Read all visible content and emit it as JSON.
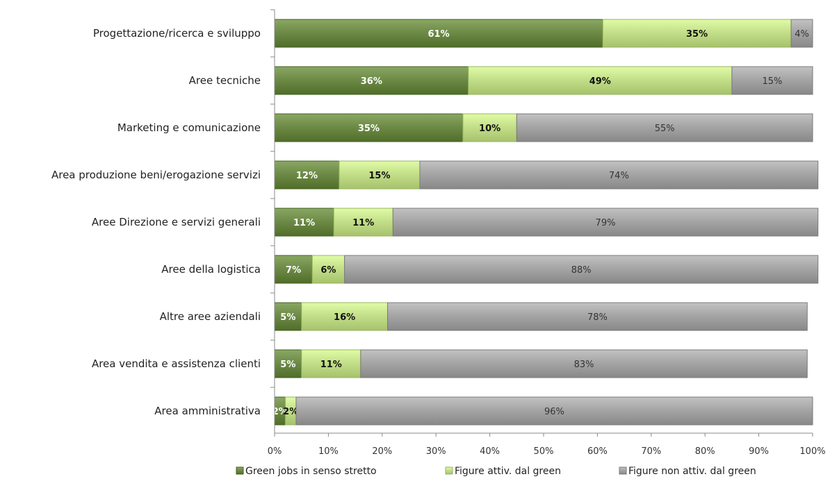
{
  "chart_data": {
    "type": "bar",
    "orientation": "horizontal",
    "stacked": "percent",
    "categories": [
      "Progettazione/ricerca e sviluppo",
      "Aree tecniche",
      "Marketing e comunicazione",
      "Area produzione beni/erogazione servizi",
      "Aree Direzione e servizi generali",
      "Aree della logistica",
      "Altre aree aziendali",
      "Area vendita e assistenza clienti",
      "Area amministrativa"
    ],
    "series": [
      {
        "name": "Green jobs in senso stretto",
        "color": "#6e8c48",
        "label_color": "#ffffff",
        "values": [
          61,
          36,
          35,
          12,
          11,
          7,
          5,
          5,
          2
        ],
        "labels": [
          "61%",
          "36%",
          "35%",
          "12%",
          "11%",
          "7%",
          "5%",
          "5%",
          "2%"
        ]
      },
      {
        "name": "Figure attiv. dal green",
        "color": "#c4e08a",
        "label_color": "#111111",
        "values": [
          35,
          49,
          10,
          15,
          11,
          6,
          16,
          11,
          2
        ],
        "labels": [
          "35%",
          "49%",
          "10%",
          "15%",
          "11%",
          "6%",
          "16%",
          "11%",
          "2%"
        ]
      },
      {
        "name": "Figure non attiv. dal green",
        "color": "#a6a6a6",
        "label_color": "#333333",
        "values": [
          4,
          15,
          55,
          74,
          79,
          88,
          78,
          83,
          96
        ],
        "labels": [
          "4%",
          "15%",
          "55%",
          "74%",
          "79%",
          "88%",
          "78%",
          "83%",
          "96%"
        ]
      }
    ],
    "x_ticks": [
      "0%",
      "10%",
      "20%",
      "30%",
      "40%",
      "50%",
      "60%",
      "70%",
      "80%",
      "90%",
      "100%"
    ],
    "xlim": [
      0,
      100
    ],
    "title": "",
    "xlabel": "",
    "ylabel": "",
    "grid": false,
    "legend_position": "bottom"
  }
}
